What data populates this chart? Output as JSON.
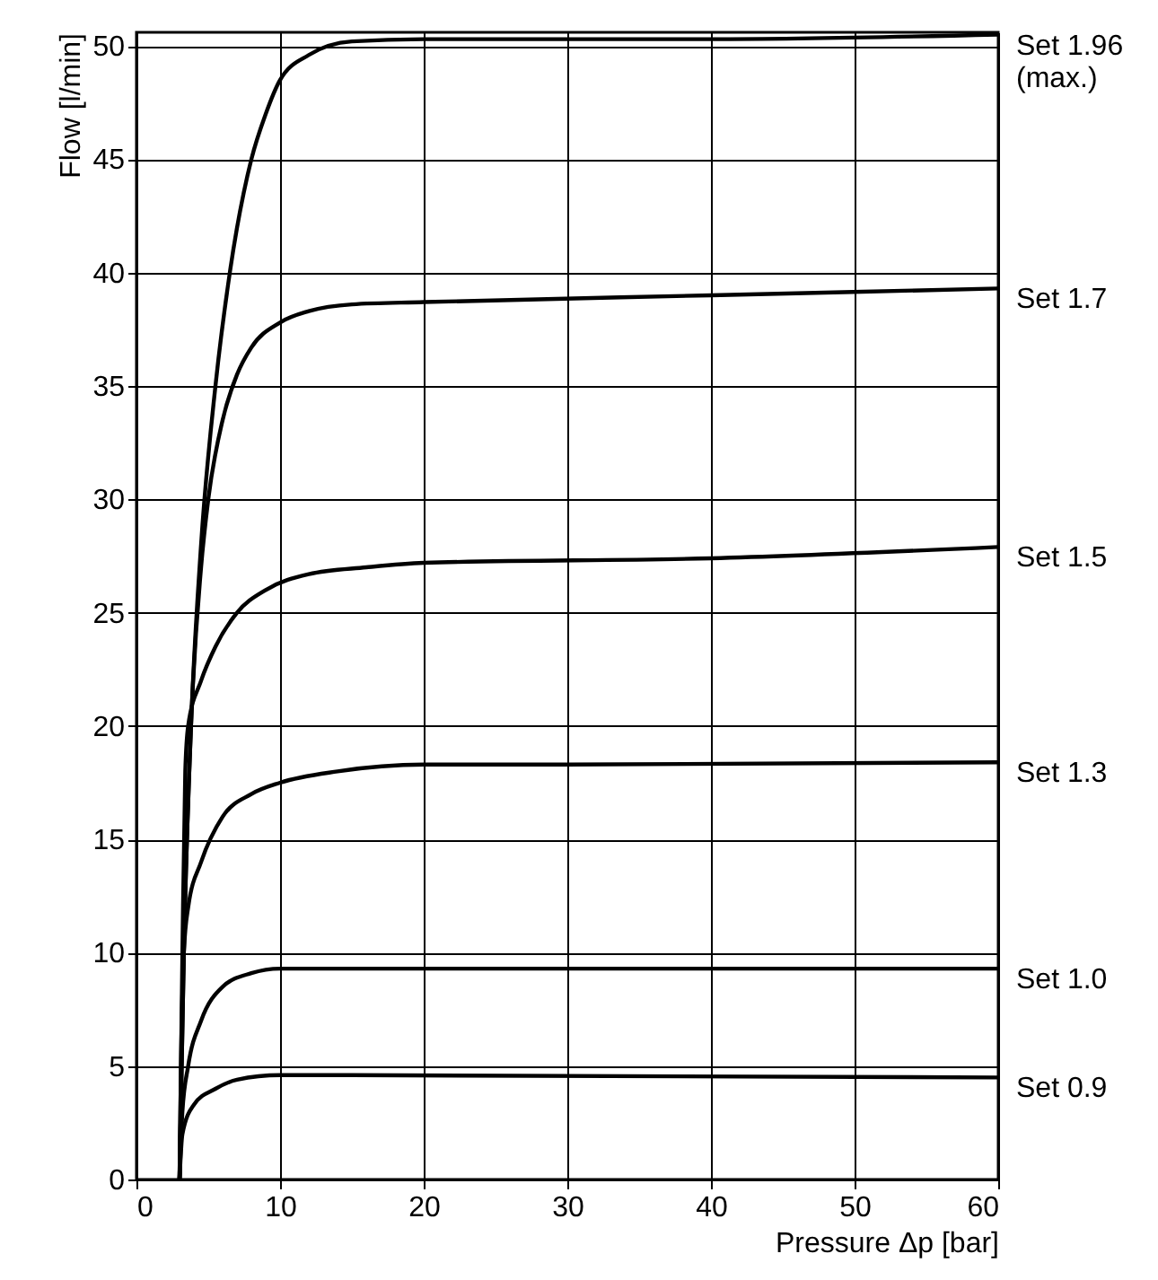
{
  "chart_data": {
    "type": "line",
    "xlabel": "Pressure Δp [bar]",
    "ylabel": "Flow [l/min]",
    "xlim": [
      0,
      60
    ],
    "ylim": [
      0,
      50.6
    ],
    "xticks": [
      0,
      10,
      20,
      30,
      40,
      50,
      60
    ],
    "yticks": [
      0,
      5,
      10,
      15,
      20,
      25,
      30,
      35,
      40,
      45,
      50
    ],
    "grid": true,
    "marker": "none",
    "line_style": "solid",
    "series": [
      {
        "name": "Set 1.96\n(max.)",
        "color": "#000000",
        "x": [
          3,
          3.3,
          3.8,
          4.5,
          5.5,
          6.5,
          8,
          9,
          10,
          12,
          15,
          20,
          40,
          60
        ],
        "values": [
          0,
          10,
          20,
          28,
          35,
          40,
          45,
          47,
          48.5,
          49.6,
          50.2,
          50.3,
          50.3,
          50.5
        ]
      },
      {
        "name": "Set 1.7",
        "color": "#000000",
        "x": [
          3,
          3.3,
          3.8,
          4.5,
          5,
          6,
          7,
          8,
          10,
          12,
          15,
          20,
          40,
          60
        ],
        "values": [
          0,
          10,
          20,
          27,
          30,
          33.5,
          35.5,
          36.7,
          37.8,
          38.3,
          38.6,
          38.7,
          39,
          39.3
        ]
      },
      {
        "name": "Set 1.5",
        "color": "#000000",
        "x": [
          3,
          3.2,
          3.4,
          3.6,
          4.5,
          5.5,
          7,
          9,
          12,
          16,
          20,
          40,
          60
        ],
        "values": [
          0,
          10,
          18,
          20,
          22,
          23.5,
          25,
          26,
          26.7,
          27,
          27.2,
          27.4,
          27.9
        ]
      },
      {
        "name": "Set 1.3",
        "color": "#000000",
        "x": [
          3,
          3.1,
          3.3,
          3.6,
          4.5,
          6,
          8,
          10,
          14,
          20,
          30,
          60
        ],
        "values": [
          0,
          5,
          10,
          12,
          14,
          16,
          17,
          17.5,
          18,
          18.3,
          18.3,
          18.4
        ]
      },
      {
        "name": "Set 1.0",
        "color": "#000000",
        "x": [
          3,
          3.2,
          3.6,
          4.5,
          6,
          8,
          10,
          60
        ],
        "values": [
          0,
          3,
          5,
          7,
          8.5,
          9.1,
          9.3,
          9.3
        ]
      },
      {
        "name": "Set 0.9",
        "color": "#000000",
        "x": [
          3,
          3.2,
          4,
          5.5,
          7,
          10,
          15,
          60
        ],
        "values": [
          0,
          2,
          3.3,
          4,
          4.4,
          4.6,
          4.6,
          4.5
        ]
      }
    ]
  }
}
